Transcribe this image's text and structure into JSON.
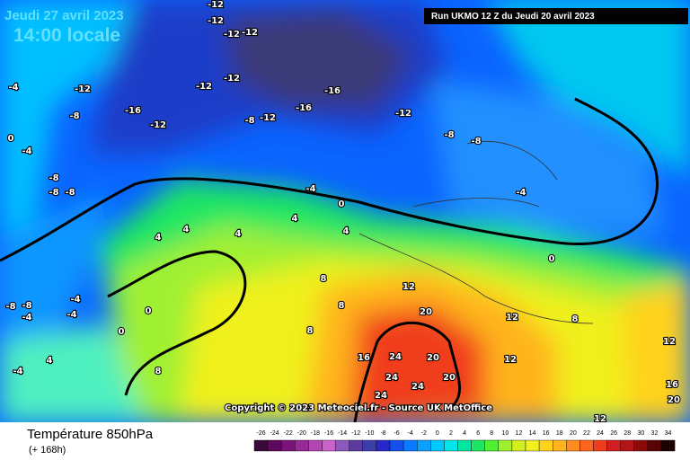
{
  "header": {
    "date": "Jeudi 27 avril 2023",
    "time": "14:00 locale",
    "run": "Run UKMO 12 Z du Jeudi 20 avril 2023"
  },
  "copyright": "Copyright © 2023 Meteociel.fr - Source UK MetOffice",
  "isotherm_labels": [
    -12,
    -12,
    -12,
    -12,
    -12,
    -12,
    -12,
    -12,
    -12,
    -12,
    -16,
    -16,
    -16,
    -8,
    -8,
    -8,
    -8,
    -8,
    -8,
    -8,
    -4,
    -4,
    -4,
    -4,
    0,
    0,
    0,
    0,
    0,
    4,
    4,
    4,
    4,
    4,
    8,
    8,
    8,
    8,
    12,
    12,
    12,
    20,
    20,
    16,
    24,
    24,
    24,
    24,
    20,
    8,
    12,
    16,
    20,
    12,
    4,
    -4,
    -4,
    -4,
    -4,
    -8,
    -8
  ],
  "legend": {
    "title": "Température 850hPa",
    "subtitle": "(+ 168h)",
    "levels": [
      -26,
      -24,
      -22,
      -20,
      -18,
      -16,
      -14,
      -12,
      -10,
      -8,
      -6,
      -4,
      -2,
      0,
      2,
      4,
      6,
      8,
      10,
      12,
      14,
      16,
      18,
      20,
      22,
      24,
      26,
      28,
      30,
      32,
      34
    ],
    "colors": [
      "#3a0a3a",
      "#5c0a5c",
      "#7a1478",
      "#962a96",
      "#b446b4",
      "#c864c8",
      "#8c5abe",
      "#5a3ca0",
      "#3c3caa",
      "#2828c8",
      "#1450f0",
      "#0a78ff",
      "#0aa0ff",
      "#00c8ff",
      "#00e6e6",
      "#00e6a0",
      "#1ee664",
      "#50f032",
      "#a0f032",
      "#d2f01e",
      "#f0f01e",
      "#ffd21e",
      "#ffb41e",
      "#ff8c1e",
      "#ff641e",
      "#f03c1e",
      "#d21e1e",
      "#b41414",
      "#8c0a0a",
      "#5a0505",
      "#1e0000"
    ]
  }
}
